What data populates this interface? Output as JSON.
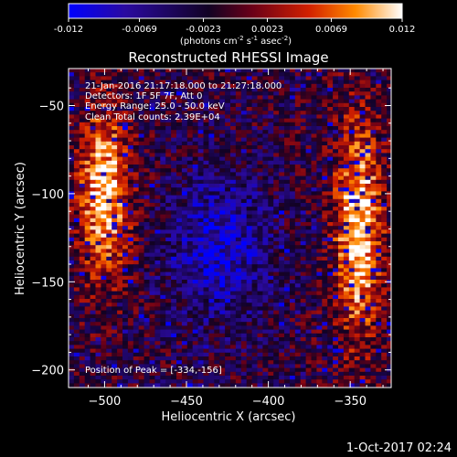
{
  "colorbar": {
    "ticks": [
      "-0.012",
      "-0.0069",
      "-0.0023",
      "0.0023",
      "0.0069",
      "0.012"
    ],
    "values": [
      -0.012,
      -0.0069,
      -0.0023,
      0.0023,
      0.0069,
      0.012
    ],
    "units_main": "(photons cm",
    "units_sup1": "-2",
    "units_mid": " s",
    "units_sup2": "-1",
    "units_tail": " asec",
    "units_sup3": "-2",
    "units_end": ")"
  },
  "annotations": {
    "time": "21-Jan-2016 21:17:18.000 to 21:27:18.000",
    "detectors": "Detectors: 1F 5F 7F, Att 0",
    "energy": "Energy Range: 25.0 - 50.0 keV",
    "clean": "Clean    Total counts: 2.39E+04",
    "peak": "Position of Peak = [-334,-156]"
  },
  "footer": {
    "timestamp": "1-Oct-2017 02:24"
  },
  "chart_data": {
    "type": "heatmap",
    "title": "Reconstructed RHESSI Image",
    "xlabel": "Heliocentric X (arcsec)",
    "ylabel": "Heliocentric Y (arcsec)",
    "xlim": [
      -522,
      -325
    ],
    "ylim": [
      -210,
      -29
    ],
    "xticks": [
      -500,
      -450,
      -400,
      -350
    ],
    "yticks": [
      -50,
      -100,
      -150,
      -200
    ],
    "xtick_labels": [
      "−500",
      "−450",
      "−400",
      "−350"
    ],
    "ytick_labels": [
      "−50",
      "−100",
      "−150",
      "−200"
    ],
    "value_range": [
      -0.012,
      0.012
    ],
    "colormap": [
      "#0000ff",
      "#2a0aa0",
      "#120224",
      "#6a0018",
      "#d22000",
      "#ff8a00",
      "#ffffff"
    ],
    "peak_position": [
      -334,
      -156
    ],
    "description": [
      {
        "region": "left arc",
        "center": [
          -500,
          -100
        ],
        "level": 0.009
      },
      {
        "region": "right arc",
        "center": [
          -345,
          -120
        ],
        "level": 0.01
      },
      {
        "region": "central minimum",
        "center": [
          -430,
          -130
        ],
        "level": -0.01
      }
    ]
  }
}
